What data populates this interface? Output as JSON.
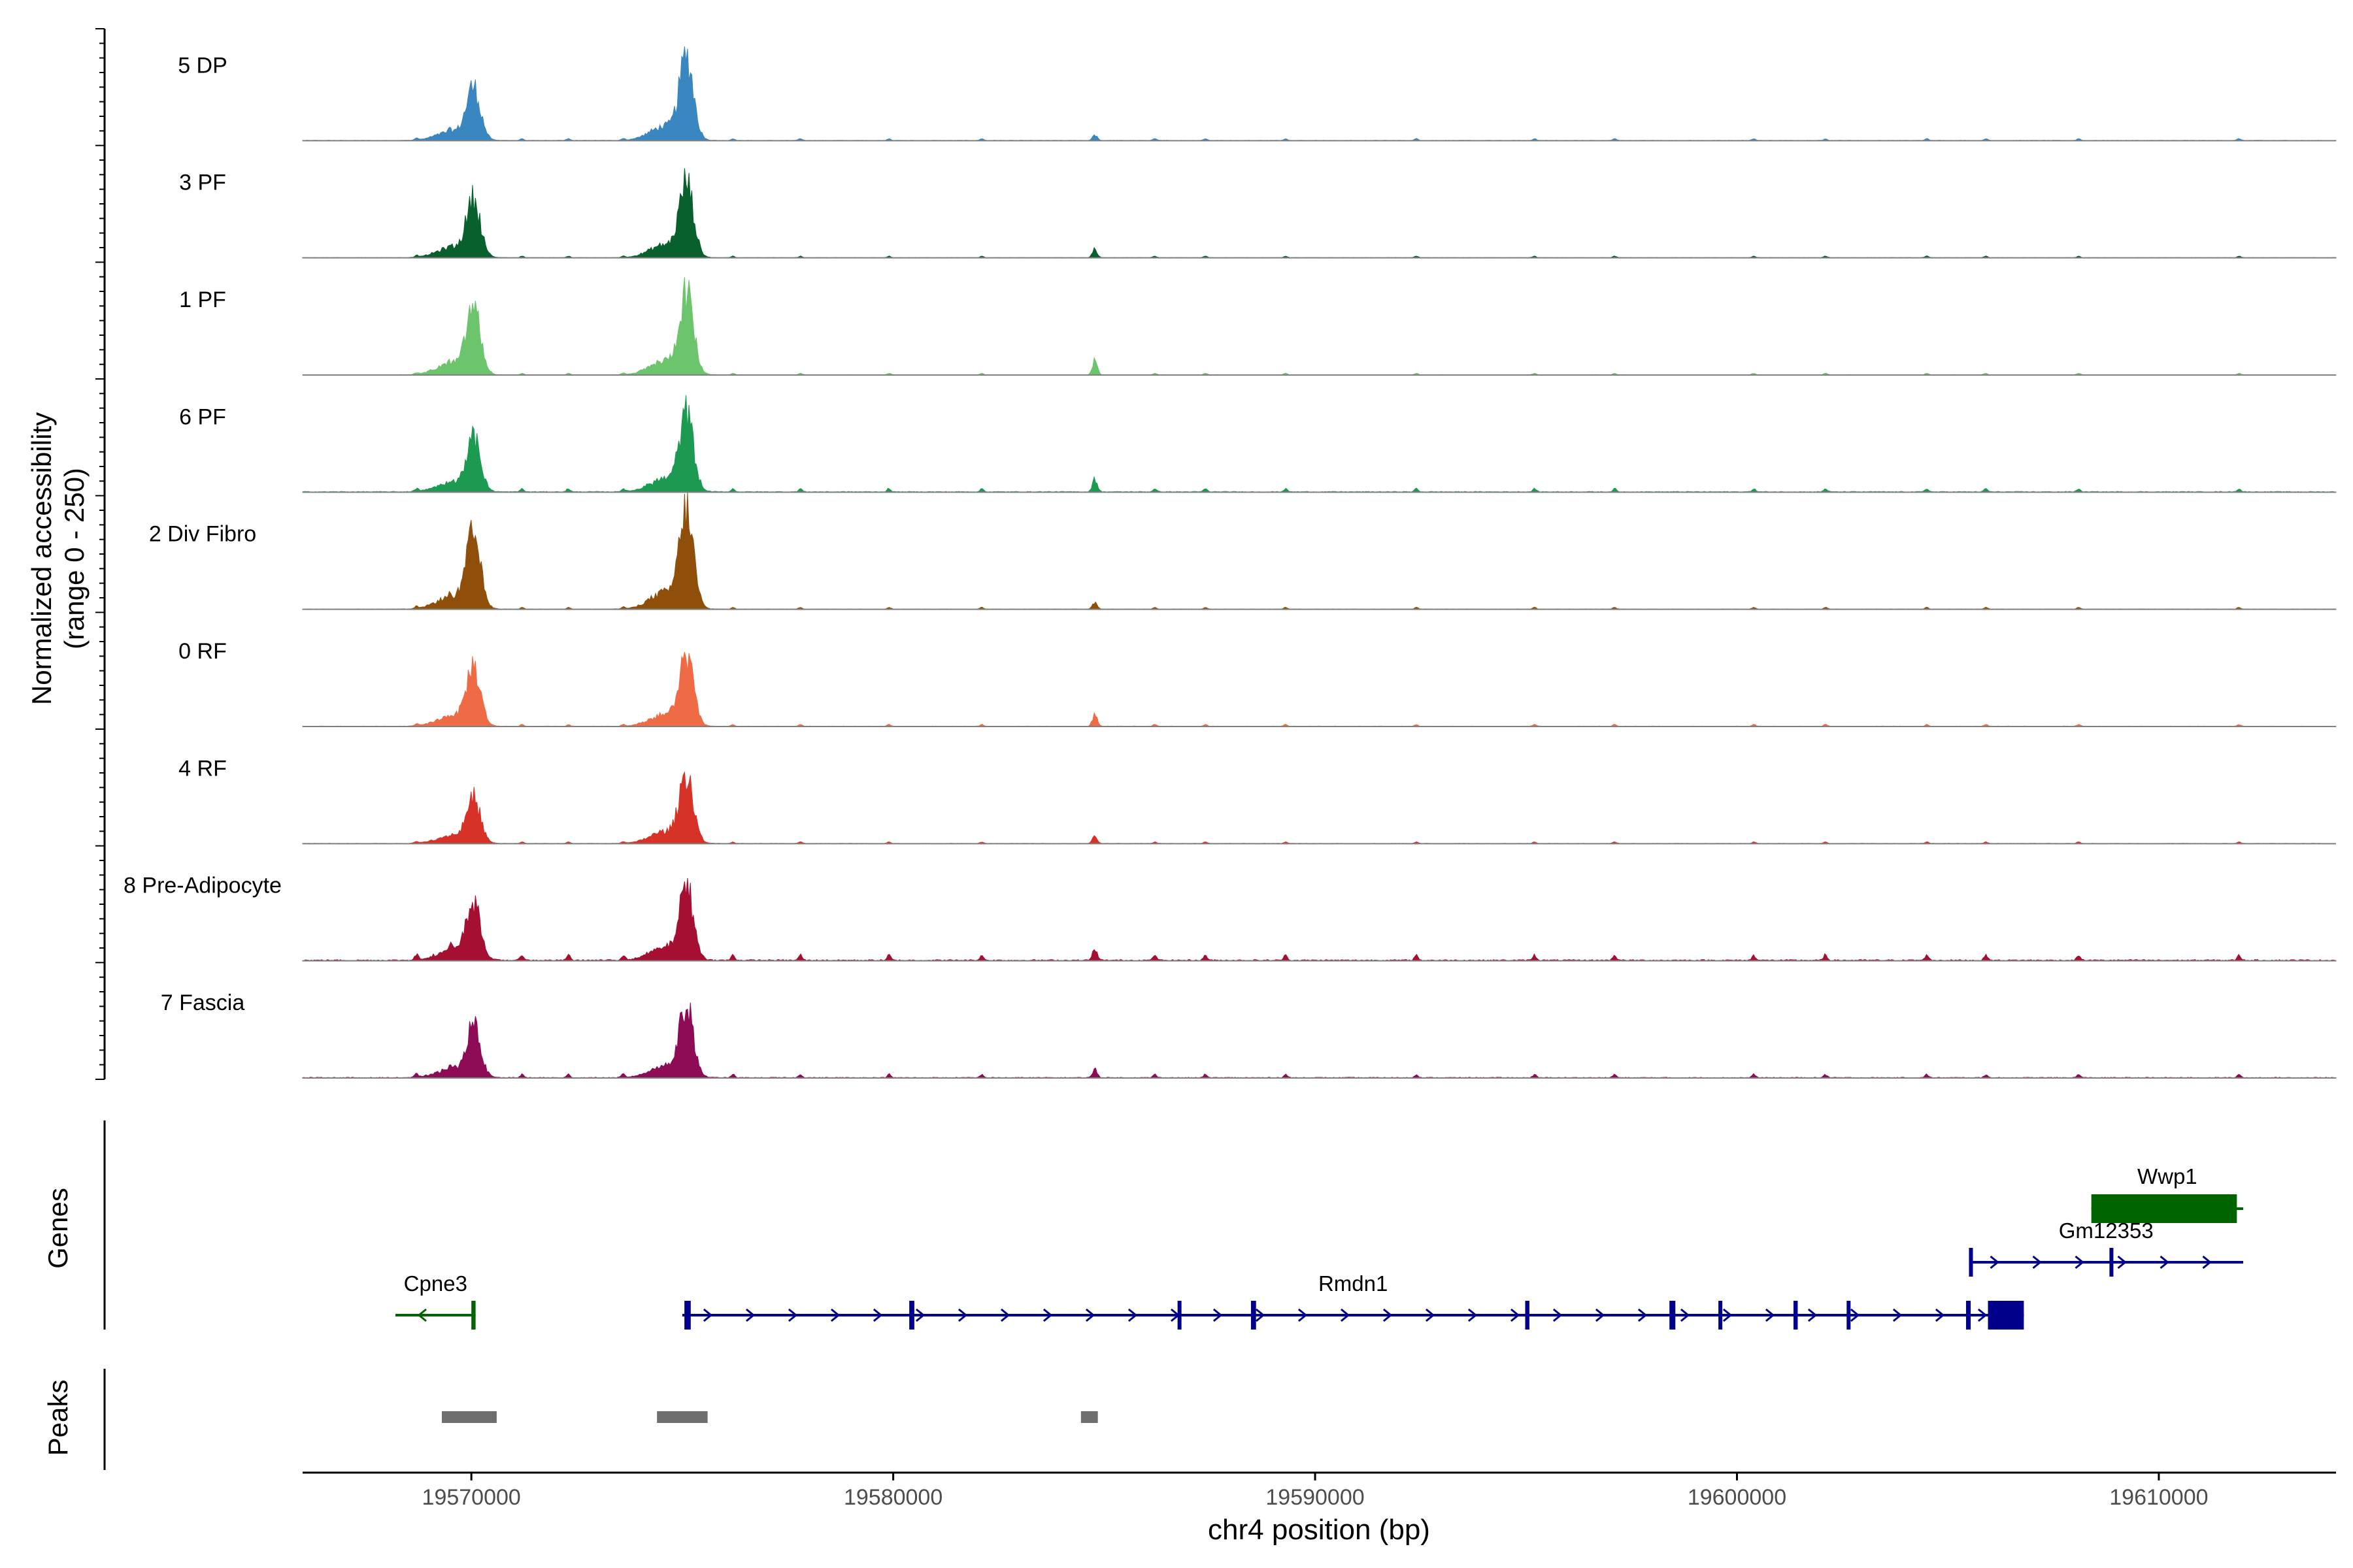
{
  "chart_data": {
    "type": "area",
    "ylabel_line1": "Normalized accessibility",
    "ylabel_line2": "(range 0 - 250)",
    "xlabel": "chr4 position (bp)",
    "xlim": [
      19566000,
      19614200
    ],
    "ylim": [
      0,
      250
    ],
    "xticks": [
      19570000,
      19580000,
      19590000,
      19600000,
      19610000
    ],
    "xtick_labels": [
      "19570000",
      "19580000",
      "19590000",
      "19600000",
      "19610000"
    ],
    "tracks": [
      {
        "name": "5 DP",
        "color": "#3a86c0",
        "peak_heights": [
          0.48,
          0.75,
          0.05
        ],
        "scatter": 0.35
      },
      {
        "name": "3 PF",
        "color": "#08602c",
        "peak_heights": [
          0.53,
          0.68,
          0.08
        ],
        "scatter": 0.3
      },
      {
        "name": "1 PF",
        "color": "#6cc46c",
        "peak_heights": [
          0.61,
          0.74,
          0.14
        ],
        "scatter": 0.3
      },
      {
        "name": "6 PF",
        "color": "#1c9a52",
        "peak_heights": [
          0.49,
          0.7,
          0.12
        ],
        "scatter": 0.6
      },
      {
        "name": "2 Div Fibro",
        "color": "#8f4f0a",
        "peak_heights": [
          0.67,
          0.89,
          0.06
        ],
        "scatter": 0.35
      },
      {
        "name": "0 RF",
        "color": "#ef6b45",
        "peak_heights": [
          0.54,
          0.63,
          0.11
        ],
        "scatter": 0.35
      },
      {
        "name": "4 RF",
        "color": "#d73227",
        "peak_heights": [
          0.41,
          0.63,
          0.07
        ],
        "scatter": 0.3
      },
      {
        "name": "8 Pre-Adipocyte",
        "color": "#a50f31",
        "peak_heights": [
          0.52,
          0.67,
          0.1
        ],
        "scatter": 1.0
      },
      {
        "name": "7 Fascia",
        "color": "#8e0b56",
        "peak_heights": [
          0.46,
          0.64,
          0.08
        ],
        "scatter": 0.6
      }
    ],
    "peak_centers": [
      19570050,
      19575100,
      19584780
    ],
    "genes_label": "Genes",
    "peaks_label": "Peaks",
    "genes": [
      {
        "name": "Cpne3",
        "start": 19568200,
        "end": 19570100,
        "strand": "-",
        "color": "#006400",
        "row": 3,
        "exons": [
          [
            19570000,
            19570100
          ]
        ]
      },
      {
        "name": "Rmdn1",
        "start": 19575000,
        "end": 19606800,
        "strand": "+",
        "color": "#00008b",
        "row": 3,
        "exons": [
          [
            19575050,
            19575200
          ],
          [
            19580380,
            19580500
          ],
          [
            19586740,
            19586800
          ],
          [
            19588480,
            19588600
          ],
          [
            19594980,
            19595080
          ],
          [
            19598400,
            19598540
          ],
          [
            19599560,
            19599600
          ],
          [
            19601340,
            19601440
          ],
          [
            19602600,
            19602640
          ],
          [
            19605430,
            19605540
          ],
          [
            19605950,
            19606800
          ]
        ],
        "thick_exon": [
          19605950,
          19606800
        ]
      },
      {
        "name": "Gm12353",
        "start": 19605500,
        "end": 19612000,
        "strand": "+",
        "color": "#00008b",
        "row": 2,
        "exons": [
          [
            19605500,
            19605570
          ],
          [
            19608830,
            19608880
          ]
        ]
      },
      {
        "name": "Wwp1",
        "start": 19608400,
        "end": 19612000,
        "strand": "+",
        "color": "#006400",
        "row": 1,
        "exons": [
          [
            19608400,
            19611850
          ]
        ],
        "thick_exon": [
          19608400,
          19611850
        ]
      }
    ],
    "peak_regions": [
      [
        19569300,
        19570600
      ],
      [
        19574400,
        19575600
      ],
      [
        19584450,
        19584850
      ]
    ]
  }
}
